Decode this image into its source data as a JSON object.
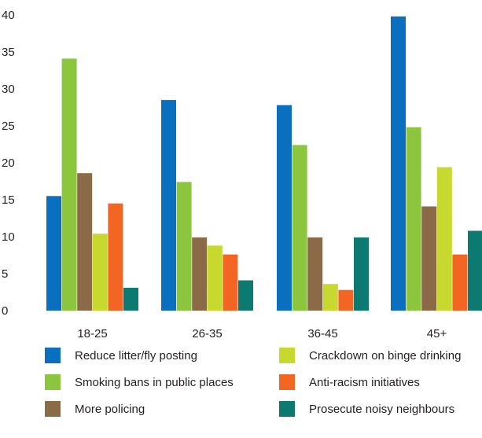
{
  "chart_data": {
    "type": "bar",
    "categories": [
      "18-25",
      "26-35",
      "36-45",
      "45+"
    ],
    "yticks": [
      "0",
      "5",
      "10",
      "15",
      "20",
      "25",
      "30",
      "35",
      "40"
    ],
    "ylim": [
      0,
      40
    ],
    "grid": false,
    "legend_position": "bottom",
    "series": [
      {
        "name": "Reduce litter/fly posting",
        "color": "#0a6fbe",
        "values": [
          15.5,
          28.5,
          27.8,
          39.8
        ]
      },
      {
        "name": "Smoking bans in public places",
        "color": "#8cc63f",
        "values": [
          34.1,
          17.4,
          22.4,
          24.8
        ]
      },
      {
        "name": "More policing",
        "color": "#8b6a47",
        "values": [
          18.6,
          9.9,
          9.9,
          14.1
        ]
      },
      {
        "name": "Crackdown on binge drinking",
        "color": "#c7d92e",
        "values": [
          10.4,
          8.8,
          3.6,
          19.4
        ]
      },
      {
        "name": "Anti-racism initiatives",
        "color": "#f26522",
        "values": [
          14.5,
          7.6,
          2.8,
          7.6
        ]
      },
      {
        "name": "Prosecute noisy neighbours",
        "color": "#0c7a71",
        "values": [
          3.1,
          4.1,
          9.9,
          10.8
        ]
      }
    ]
  }
}
